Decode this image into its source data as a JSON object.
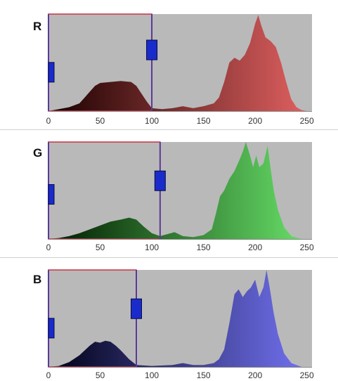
{
  "x_axis": {
    "min": 0,
    "max": 255,
    "ticks": [
      0,
      50,
      100,
      150,
      200,
      250
    ]
  },
  "channels": [
    {
      "id": "red",
      "label": "R",
      "threshold_low": 0,
      "threshold_high": 100,
      "low_handle_level": 0.4,
      "high_handle_level": 0.63,
      "gradient": [
        "#1a0000",
        "#e06060"
      ],
      "histogram": [
        [
          0,
          0
        ],
        [
          10,
          0.02
        ],
        [
          20,
          0.04
        ],
        [
          30,
          0.08
        ],
        [
          35,
          0.14
        ],
        [
          40,
          0.2
        ],
        [
          45,
          0.26
        ],
        [
          50,
          0.29
        ],
        [
          60,
          0.3
        ],
        [
          70,
          0.31
        ],
        [
          80,
          0.3
        ],
        [
          85,
          0.26
        ],
        [
          90,
          0.18
        ],
        [
          95,
          0.1
        ],
        [
          100,
          0.03
        ],
        [
          110,
          0.02
        ],
        [
          120,
          0.03
        ],
        [
          130,
          0.05
        ],
        [
          140,
          0.03
        ],
        [
          150,
          0.05
        ],
        [
          160,
          0.08
        ],
        [
          165,
          0.14
        ],
        [
          170,
          0.3
        ],
        [
          175,
          0.5
        ],
        [
          180,
          0.55
        ],
        [
          185,
          0.52
        ],
        [
          190,
          0.58
        ],
        [
          195,
          0.7
        ],
        [
          200,
          0.9
        ],
        [
          203,
          0.99
        ],
        [
          206,
          0.88
        ],
        [
          210,
          0.76
        ],
        [
          215,
          0.72
        ],
        [
          220,
          0.66
        ],
        [
          225,
          0.5
        ],
        [
          230,
          0.3
        ],
        [
          235,
          0.12
        ],
        [
          240,
          0.04
        ],
        [
          245,
          0.01
        ],
        [
          250,
          0
        ]
      ]
    },
    {
      "id": "green",
      "label": "G",
      "threshold_low": 0,
      "threshold_high": 108,
      "low_handle_level": 0.46,
      "high_handle_level": 0.6,
      "gradient": [
        "#001a00",
        "#66dd66"
      ],
      "histogram": [
        [
          0,
          0
        ],
        [
          10,
          0.01
        ],
        [
          20,
          0.03
        ],
        [
          30,
          0.06
        ],
        [
          40,
          0.1
        ],
        [
          50,
          0.14
        ],
        [
          60,
          0.18
        ],
        [
          70,
          0.2
        ],
        [
          78,
          0.22
        ],
        [
          85,
          0.2
        ],
        [
          92,
          0.13
        ],
        [
          100,
          0.06
        ],
        [
          108,
          0.03
        ],
        [
          115,
          0.05
        ],
        [
          122,
          0.07
        ],
        [
          130,
          0.03
        ],
        [
          140,
          0.02
        ],
        [
          150,
          0.04
        ],
        [
          158,
          0.1
        ],
        [
          162,
          0.26
        ],
        [
          166,
          0.44
        ],
        [
          170,
          0.5
        ],
        [
          175,
          0.62
        ],
        [
          180,
          0.7
        ],
        [
          185,
          0.82
        ],
        [
          188,
          0.9
        ],
        [
          191,
          1.0
        ],
        [
          195,
          0.86
        ],
        [
          198,
          0.74
        ],
        [
          201,
          0.86
        ],
        [
          204,
          0.74
        ],
        [
          208,
          0.78
        ],
        [
          212,
          0.96
        ],
        [
          215,
          0.72
        ],
        [
          218,
          0.5
        ],
        [
          222,
          0.3
        ],
        [
          228,
          0.12
        ],
        [
          235,
          0.03
        ],
        [
          245,
          0
        ]
      ]
    },
    {
      "id": "blue",
      "label": "B",
      "threshold_low": 0,
      "threshold_high": 85,
      "low_handle_level": 0.4,
      "high_handle_level": 0.6,
      "gradient": [
        "#000014",
        "#7070ee"
      ],
      "histogram": [
        [
          0,
          0
        ],
        [
          10,
          0.01
        ],
        [
          20,
          0.05
        ],
        [
          30,
          0.12
        ],
        [
          40,
          0.22
        ],
        [
          45,
          0.26
        ],
        [
          50,
          0.25
        ],
        [
          55,
          0.27
        ],
        [
          60,
          0.26
        ],
        [
          65,
          0.22
        ],
        [
          70,
          0.17
        ],
        [
          78,
          0.08
        ],
        [
          85,
          0.02
        ],
        [
          100,
          0.01
        ],
        [
          120,
          0.02
        ],
        [
          130,
          0.04
        ],
        [
          140,
          0.02
        ],
        [
          150,
          0.02
        ],
        [
          160,
          0.04
        ],
        [
          165,
          0.08
        ],
        [
          170,
          0.18
        ],
        [
          175,
          0.45
        ],
        [
          180,
          0.75
        ],
        [
          184,
          0.8
        ],
        [
          188,
          0.72
        ],
        [
          192,
          0.78
        ],
        [
          196,
          0.82
        ],
        [
          200,
          0.9
        ],
        [
          204,
          0.72
        ],
        [
          208,
          0.82
        ],
        [
          211,
          1.0
        ],
        [
          214,
          0.82
        ],
        [
          218,
          0.55
        ],
        [
          222,
          0.34
        ],
        [
          228,
          0.14
        ],
        [
          235,
          0.04
        ],
        [
          245,
          0
        ]
      ]
    }
  ]
}
